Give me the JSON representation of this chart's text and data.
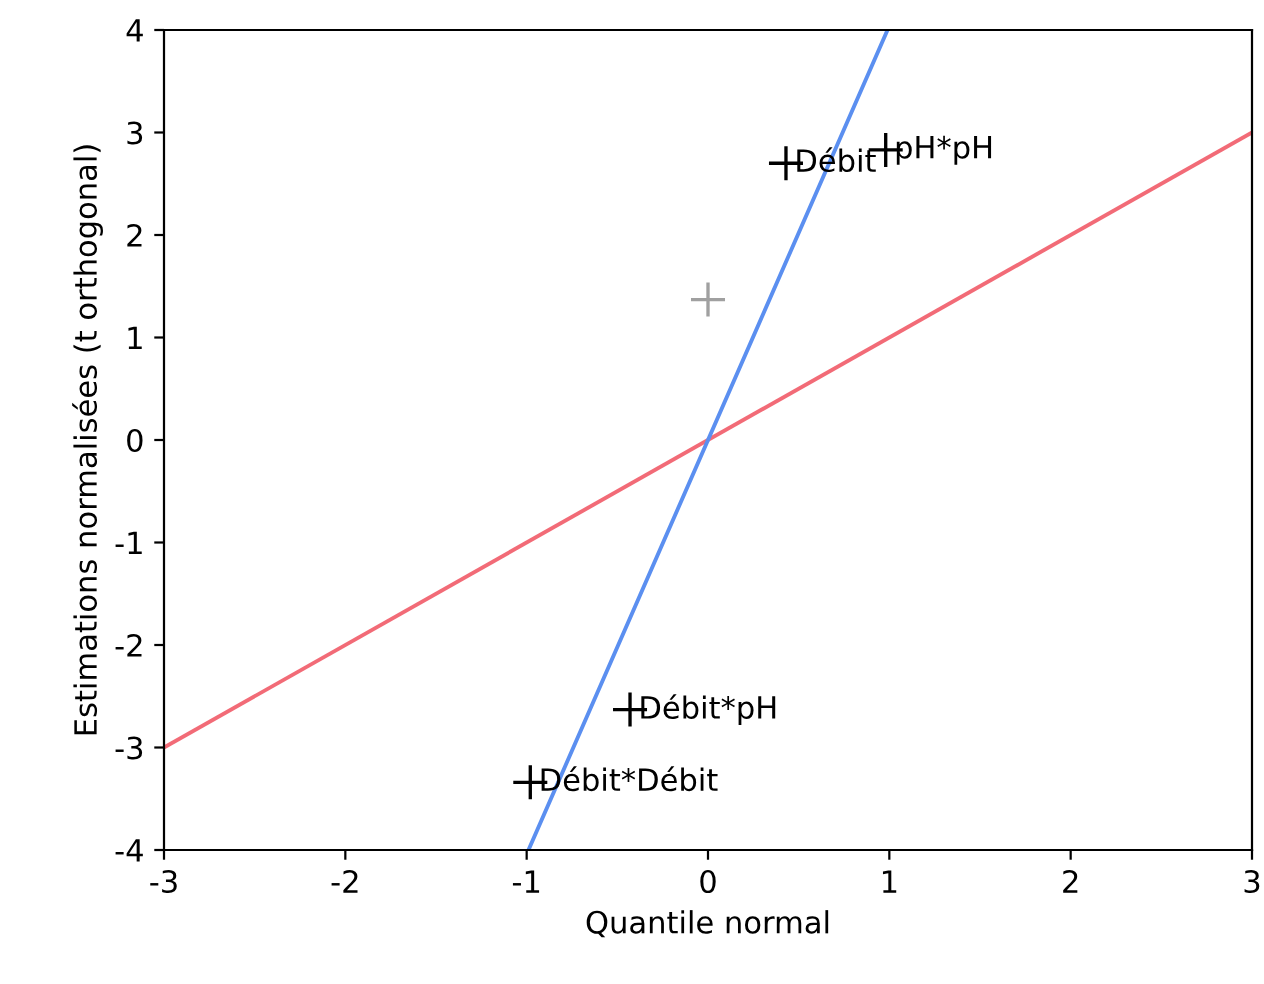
{
  "chart_data": {
    "type": "scatter",
    "xlabel": "Quantile normal",
    "ylabel": "Estimations normalisées (t orthogonal)",
    "xlim": [
      -3,
      3
    ],
    "ylim": [
      -4,
      4
    ],
    "xticks": [
      -3,
      -2,
      -1,
      0,
      1,
      2,
      3
    ],
    "yticks": [
      -4,
      -3,
      -2,
      -1,
      0,
      1,
      2,
      3,
      4
    ],
    "grid": false,
    "legend": false,
    "marker": "cross",
    "series": [
      {
        "type": "line",
        "color": "#f26b77",
        "x": [
          -3,
          3
        ],
        "values": [
          -3,
          3
        ],
        "marker": "none"
      },
      {
        "type": "line",
        "color": "#5b8ff0",
        "x": [
          -0.99,
          0.99
        ],
        "values": [
          -4,
          4
        ],
        "marker": "none"
      },
      {
        "color": "#000000",
        "x": [
          -0.98,
          -0.43,
          0.43,
          0.98
        ],
        "values": [
          -3.34,
          -2.63,
          2.7,
          2.83
        ]
      },
      {
        "color": "#a0a0a0",
        "x": [
          0
        ],
        "values": [
          1.37
        ]
      }
    ],
    "annotations": [
      {
        "text": "Débit*Débit",
        "x": -0.98,
        "y": -3.34
      },
      {
        "text": "Débit*pH",
        "x": -0.43,
        "y": -2.63
      },
      {
        "text": "Débit",
        "x": 0.43,
        "y": 2.7
      },
      {
        "text": "pH*pH",
        "x": 0.98,
        "y": 2.83
      }
    ]
  }
}
